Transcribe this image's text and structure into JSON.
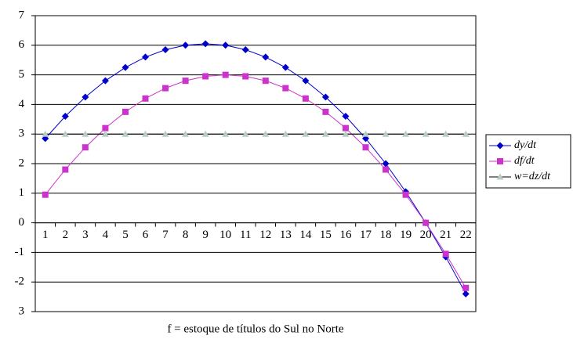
{
  "chart_data": {
    "type": "line",
    "x_label": "f = estoque de títulos do Sul no Norte",
    "categories": [
      "1",
      "2",
      "3",
      "4",
      "5",
      "6",
      "7",
      "8",
      "9",
      "10",
      "11",
      "12",
      "13",
      "14",
      "15",
      "16",
      "17",
      "18",
      "19",
      "20",
      "21",
      "22"
    ],
    "series": [
      {
        "name": "dy/dt",
        "color": "#0000cc",
        "marker": "diamond",
        "values": [
          2.85,
          3.6,
          4.25,
          4.8,
          5.25,
          5.6,
          5.85,
          6.0,
          6.05,
          6.0,
          5.85,
          5.6,
          5.25,
          4.8,
          4.25,
          3.6,
          2.85,
          2.0,
          1.05,
          0,
          -1.15,
          -2.4
        ]
      },
      {
        "name": "df/dt",
        "color": "#cc33cc",
        "marker": "square",
        "values": [
          0.95,
          1.8,
          2.55,
          3.2,
          3.75,
          4.2,
          4.55,
          4.8,
          4.95,
          5.0,
          4.95,
          4.8,
          4.55,
          4.2,
          3.75,
          3.2,
          2.55,
          1.8,
          0.95,
          0,
          -1.05,
          -2.2
        ]
      },
      {
        "name": "w=dz/dt",
        "color": "#000000",
        "marker_color": "#b8ccc4",
        "marker": "triangle",
        "values": [
          3,
          3,
          3,
          3,
          3,
          3,
          3,
          3,
          3,
          3,
          3,
          3,
          3,
          3,
          3,
          3,
          3,
          3,
          3,
          3,
          3,
          3
        ]
      }
    ],
    "ylim": [
      -3,
      7
    ],
    "yticks": [
      7,
      6,
      5,
      4,
      3,
      2,
      1,
      0,
      -1,
      -2,
      {
        "value": -3,
        "label": "3"
      }
    ],
    "grid": true,
    "legend": "right"
  }
}
